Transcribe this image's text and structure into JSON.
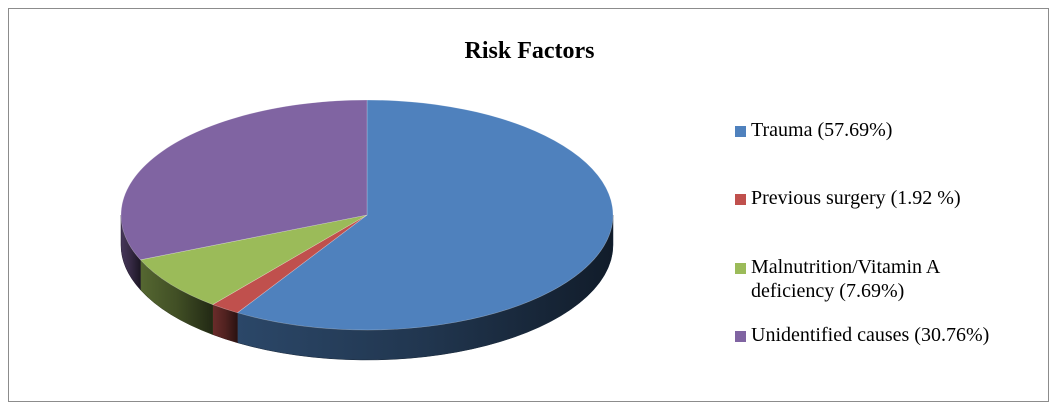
{
  "chart_data": {
    "type": "pie",
    "title": "Risk Factors",
    "series": [
      {
        "label": "Trauma (57.69%)",
        "value": 57.69,
        "color": "#4f81bd"
      },
      {
        "label": "Previous surgery (1.92 %)",
        "value": 1.92,
        "color": "#c0504d"
      },
      {
        "label": "Malnutrition/Vitamin A deficiency (7.69%)",
        "value": 7.69,
        "color": "#9bbb59"
      },
      {
        "label": "Unidentified causes (30.76%)",
        "value": 30.76,
        "color": "#8064a2"
      }
    ],
    "three_d": true,
    "legend_position": "right"
  }
}
